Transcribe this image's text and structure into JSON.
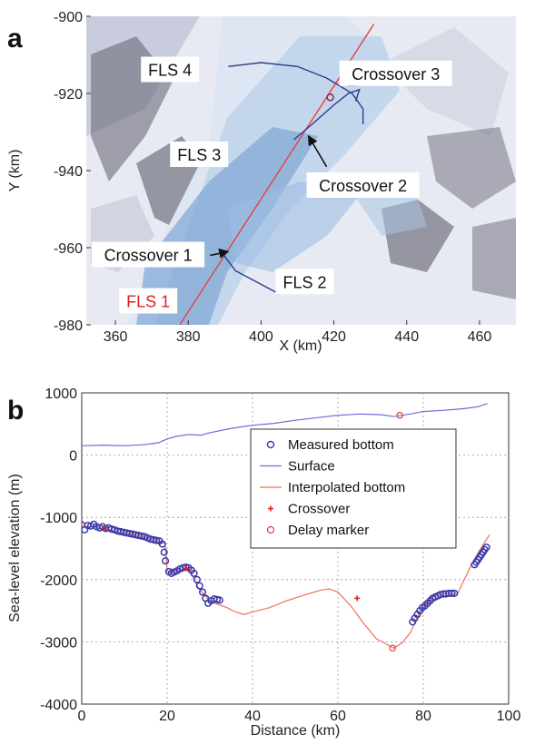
{
  "panel_a": {
    "letter": "a"
  },
  "panel_b": {
    "letter": "b"
  },
  "chart_data": [
    {
      "type": "scatter",
      "panel": "a",
      "xlabel": "X (km)",
      "ylabel": "Y (km)",
      "xlim": [
        352,
        470
      ],
      "ylim": [
        -980,
        -900
      ],
      "xticks": [
        "360",
        "380",
        "400",
        "420",
        "440",
        "460"
      ],
      "yticks": [
        "-900",
        "-920",
        "-940",
        "-960",
        "-980"
      ],
      "background": "satellite image of glacier",
      "colors": {
        "fls1": "#e8413a",
        "fls_other": "#2e3a8c",
        "label_red": "#e02020"
      },
      "labels": [
        {
          "text": "FLS 4",
          "x": 375,
          "y": -914
        },
        {
          "text": "FLS 3",
          "x": 383,
          "y": -936
        },
        {
          "text": "Crossover 3",
          "x": 437,
          "y": -915
        },
        {
          "text": "Crossover 2",
          "x": 428,
          "y": -944
        },
        {
          "text": "Crossover 1",
          "x": 369,
          "y": -962
        },
        {
          "text": "FLS 2",
          "x": 412,
          "y": -969
        },
        {
          "text": "FLS 1",
          "x": 369,
          "y": -974
        }
      ],
      "lines": [
        {
          "name": "FLS 1",
          "x": [
            377,
            431
          ],
          "y": [
            -981,
            -902
          ]
        },
        {
          "name": "FLS 2",
          "x": [
            389,
            393,
            405
          ],
          "y": [
            -961,
            -966,
            -972
          ]
        },
        {
          "name": "FLS 3",
          "x": [
            409,
            414,
            420,
            424,
            427,
            426
          ],
          "y": [
            -932,
            -928,
            -923,
            -920,
            -919,
            -922
          ]
        },
        {
          "name": "FLS 4",
          "x": [
            391,
            400,
            410,
            418,
            425,
            428,
            428
          ],
          "y": [
            -913,
            -912,
            -913,
            -916,
            -920,
            -924,
            -928
          ]
        }
      ],
      "points": [
        {
          "name": "Crossover 3",
          "x": 419,
          "y": -921
        }
      ],
      "arrows": [
        {
          "from": [
            432,
            -914
          ],
          "to": [
            424,
            -918
          ]
        },
        {
          "from": [
            418,
            -939
          ],
          "to": [
            413,
            -931
          ]
        },
        {
          "from": [
            386,
            -962
          ],
          "to": [
            391,
            -961
          ]
        }
      ]
    },
    {
      "type": "scatter",
      "panel": "b",
      "xlabel": "Distance (km)",
      "ylabel": "Sea-level elevation (m)",
      "xlim": [
        0,
        100
      ],
      "ylim": [
        -4000,
        1000
      ],
      "xticks": [
        "0",
        "20",
        "40",
        "60",
        "80",
        "100"
      ],
      "yticks": [
        "1000",
        "0",
        "-1000",
        "-2000",
        "-3000",
        "-4000"
      ],
      "grid": true,
      "legend_placement": "top-right",
      "legend": [
        "Measured bottom",
        "Surface",
        "Interpolated bottom",
        "Crossover",
        "Delay marker"
      ],
      "colors": {
        "measured": "#3a3aaa",
        "surface": "#6a6ad8",
        "interpolated": "#f0705a",
        "crossover": "#e02020",
        "delay": "#e04040"
      },
      "series": [
        {
          "name": "Surface",
          "x": [
            0,
            5,
            10,
            15,
            18,
            20,
            22,
            25,
            28,
            30,
            35,
            40,
            45,
            50,
            55,
            60,
            65,
            70,
            73,
            77,
            80,
            85,
            90,
            93,
            95
          ],
          "y": [
            150,
            160,
            150,
            170,
            200,
            260,
            300,
            330,
            320,
            360,
            430,
            480,
            510,
            560,
            600,
            640,
            660,
            650,
            620,
            660,
            700,
            720,
            750,
            780,
            830
          ]
        },
        {
          "name": "Interpolated bottom",
          "x": [
            0,
            3,
            6,
            10,
            14,
            18,
            19.5,
            20,
            21,
            23,
            25,
            27,
            30,
            32,
            34,
            36,
            38,
            40,
            44,
            48,
            52,
            56,
            58,
            60,
            63,
            66,
            69,
            72,
            73,
            75,
            77,
            79,
            82,
            85,
            88,
            91,
            93,
            95.5
          ],
          "y": [
            -1150,
            -1150,
            -1200,
            -1250,
            -1300,
            -1380,
            -1420,
            -1850,
            -1900,
            -1850,
            -1800,
            -2100,
            -2350,
            -2400,
            -2450,
            -2520,
            -2560,
            -2520,
            -2450,
            -2340,
            -2250,
            -2170,
            -2150,
            -2200,
            -2420,
            -2700,
            -2950,
            -3060,
            -3100,
            -3020,
            -2850,
            -2550,
            -2280,
            -2230,
            -2230,
            -1800,
            -1550,
            -1280
          ]
        },
        {
          "name": "Measured bottom",
          "x": [
            0,
            0.7,
            1.4,
            2.1,
            2.8,
            3.5,
            4.2,
            4.9,
            5.6,
            6.3,
            7,
            7.7,
            8.4,
            9.1,
            9.8,
            10.5,
            11.2,
            11.9,
            12.6,
            13.3,
            14,
            14.7,
            15.4,
            16.1,
            16.8,
            17.5,
            18.2,
            18.9,
            19.3,
            19.6,
            20.4,
            21,
            21.6,
            22.3,
            23,
            23.7,
            24.4,
            25,
            25.7,
            26.3,
            27,
            27.6,
            28.3,
            29,
            29.6,
            30.3,
            31,
            31.7,
            32.3,
            77.5,
            78,
            78.6,
            79.2,
            79.8,
            80.4,
            81,
            81.6,
            82.2,
            82.8,
            83.4,
            84,
            84.7,
            85.3,
            86,
            86.7,
            87.3,
            92,
            92.4,
            92.8,
            93.2,
            93.6,
            94,
            94.4,
            94.8
          ],
          "y": [
            -1120,
            -1200,
            -1130,
            -1140,
            -1110,
            -1150,
            -1170,
            -1150,
            -1180,
            -1170,
            -1190,
            -1200,
            -1220,
            -1230,
            -1240,
            -1250,
            -1260,
            -1270,
            -1280,
            -1290,
            -1300,
            -1310,
            -1330,
            -1350,
            -1360,
            -1370,
            -1380,
            -1430,
            -1560,
            -1700,
            -1870,
            -1900,
            -1880,
            -1860,
            -1830,
            -1810,
            -1800,
            -1810,
            -1850,
            -1900,
            -2000,
            -2100,
            -2200,
            -2300,
            -2380,
            -2340,
            -2310,
            -2320,
            -2330,
            -2680,
            -2620,
            -2560,
            -2500,
            -2450,
            -2420,
            -2380,
            -2340,
            -2300,
            -2280,
            -2260,
            -2240,
            -2230,
            -2230,
            -2220,
            -2220,
            -2220,
            -1760,
            -1720,
            -1680,
            -1640,
            -1600,
            -1560,
            -1520,
            -1480
          ]
        },
        {
          "name": "Crossover",
          "x": [
            5.5,
            24.5,
            64.5
          ],
          "y": [
            -1170,
            -1820,
            -2300
          ]
        },
        {
          "name": "Delay marker",
          "x": [
            72.8,
            74.5
          ],
          "y": [
            -3100,
            640
          ]
        }
      ]
    }
  ]
}
